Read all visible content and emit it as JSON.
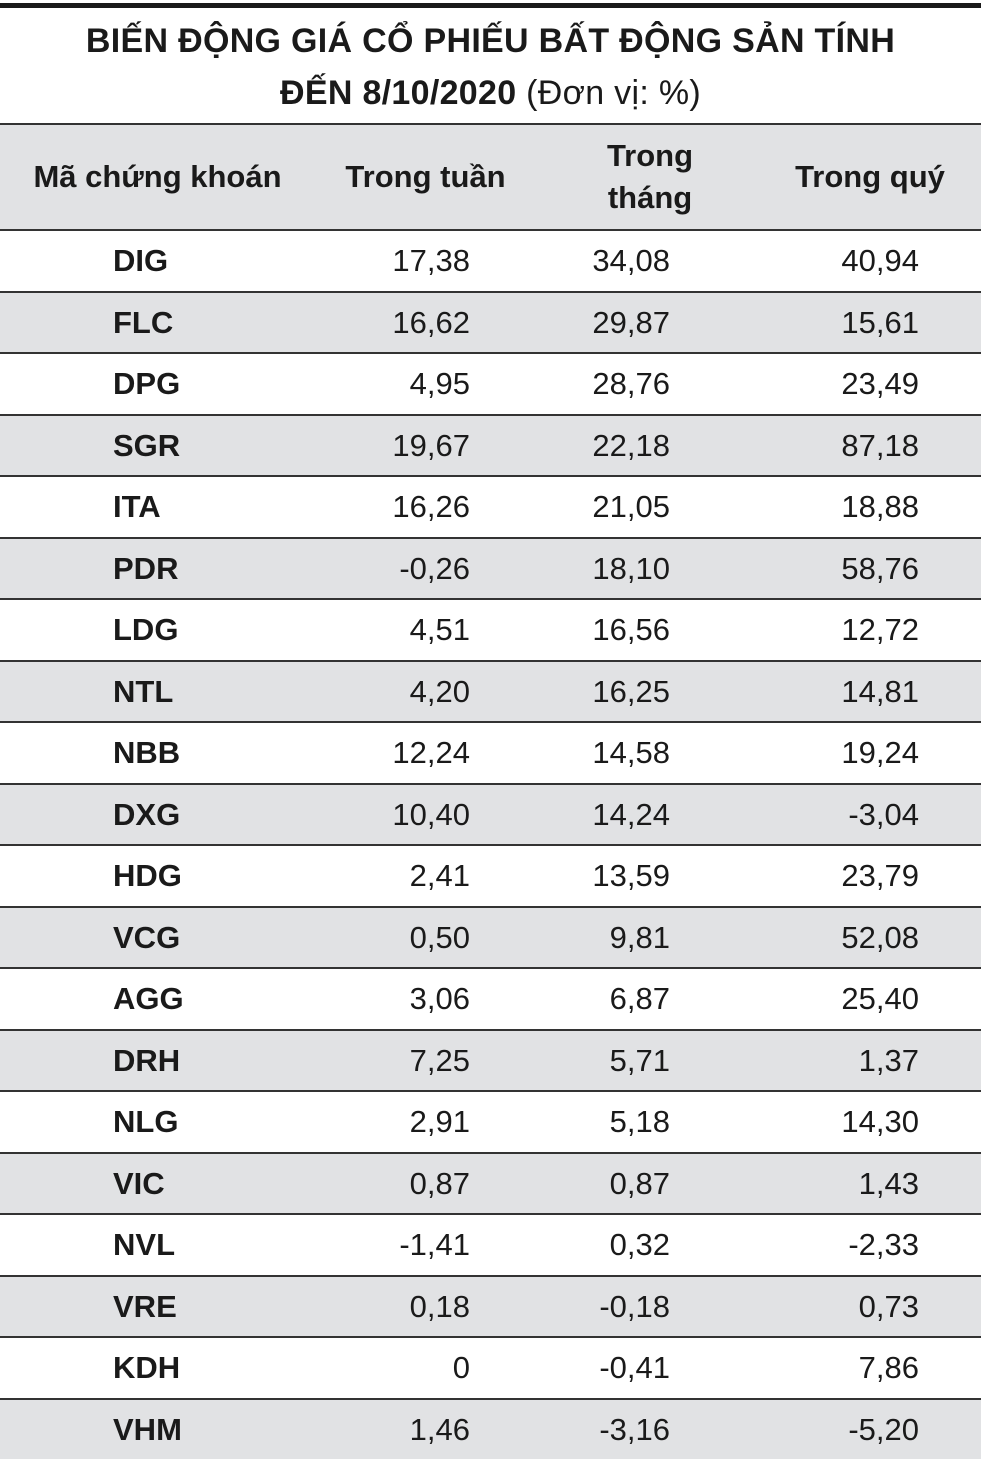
{
  "header": {
    "title_line1": "BIẾN ĐỘNG GIÁ CỔ PHIẾU BẤT ĐỘNG SẢN TÍNH",
    "title_line2": "ĐẾN 8/10/2020",
    "unit": "(Đơn vị: %)"
  },
  "table": {
    "columns": [
      "Mã chứng khoán",
      "Trong tuần",
      "Trong tháng",
      "Trong quý"
    ],
    "rows": [
      [
        "DIG",
        "17,38",
        "34,08",
        "40,94"
      ],
      [
        "FLC",
        "16,62",
        "29,87",
        "15,61"
      ],
      [
        "DPG",
        "4,95",
        "28,76",
        "23,49"
      ],
      [
        "SGR",
        "19,67",
        "22,18",
        "87,18"
      ],
      [
        "ITA",
        "16,26",
        "21,05",
        "18,88"
      ],
      [
        "PDR",
        "-0,26",
        "18,10",
        "58,76"
      ],
      [
        "LDG",
        "4,51",
        "16,56",
        "12,72"
      ],
      [
        "NTL",
        "4,20",
        "16,25",
        "14,81"
      ],
      [
        "NBB",
        "12,24",
        "14,58",
        "19,24"
      ],
      [
        "DXG",
        "10,40",
        "14,24",
        "-3,04"
      ],
      [
        "HDG",
        "2,41",
        "13,59",
        "23,79"
      ],
      [
        "VCG",
        "0,50",
        "9,81",
        "52,08"
      ],
      [
        "AGG",
        "3,06",
        "6,87",
        "25,40"
      ],
      [
        "DRH",
        "7,25",
        "5,71",
        "1,37"
      ],
      [
        "NLG",
        "2,91",
        "5,18",
        "14,30"
      ],
      [
        "VIC",
        "0,87",
        "0,87",
        "1,43"
      ],
      [
        "NVL",
        "-1,41",
        "0,32",
        "-2,33"
      ],
      [
        "VRE",
        "0,18",
        "-0,18",
        "0,73"
      ],
      [
        "KDH",
        "0",
        "-0,41",
        "7,86"
      ],
      [
        "VHM",
        "1,46",
        "-3,16",
        "-5,20"
      ]
    ]
  }
}
